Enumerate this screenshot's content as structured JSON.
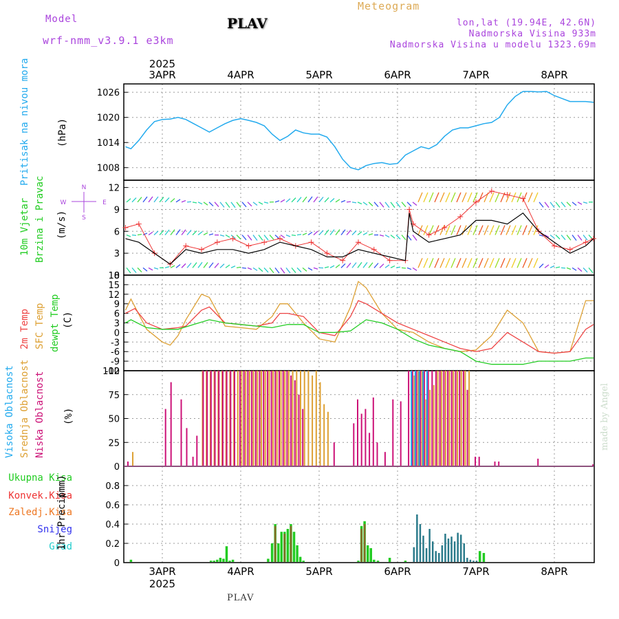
{
  "header": {
    "model_label": "Model",
    "model_name": "wrf-nmm_v3.9.1  e3km",
    "station": "PLAV",
    "meteogram_label": "Meteogram",
    "lonlat": "lon,lat (19.94E, 42.6N)",
    "altitude": "Nadmorska Visina 933m",
    "model_altitude": "Nadmorska Visina u modelu 1323.69m",
    "watermark": "made by Angel",
    "footer": "PLAV",
    "year": "2025"
  },
  "time_axis": {
    "days": [
      "3APR",
      "4APR",
      "5APR",
      "6APR",
      "7APR",
      "8APR"
    ],
    "start_day_offset": -0.47,
    "end_day_offset": 5.5
  },
  "colors": {
    "pressure": "#22aaee",
    "wind_speed": "#000000",
    "wind_gust": "#ee3333",
    "temp_2m": "#ee4444",
    "temp_sfc": "#dda033",
    "dewpoint": "#22cc22",
    "cloud_high": "#22aaee",
    "cloud_mid": "#dda033",
    "cloud_low": "#cc1177",
    "precip_total": "#22cc22",
    "precip_conv": "#ee3333",
    "precip_frozen": "#ee7722",
    "snow": "#3333ee",
    "graupel": "#22cccc"
  },
  "chart_data": [
    {
      "type": "line",
      "name": "pressure",
      "title": "Pritisak na nivou mora",
      "ylabel": "(hPa)",
      "ylim": [
        1005,
        1028
      ],
      "yticks": [
        "1008",
        "1014",
        "1020",
        "1026"
      ],
      "series": [
        {
          "name": "Pritisak na nivou mora",
          "x": [
            -0.47,
            -0.4,
            -0.3,
            -0.2,
            -0.1,
            0.0,
            0.1,
            0.2,
            0.3,
            0.4,
            0.5,
            0.6,
            0.7,
            0.8,
            0.9,
            1.0,
            1.1,
            1.2,
            1.3,
            1.4,
            1.5,
            1.6,
            1.7,
            1.8,
            1.9,
            2.0,
            2.1,
            2.2,
            2.3,
            2.4,
            2.5,
            2.6,
            2.7,
            2.8,
            2.9,
            3.0,
            3.1,
            3.2,
            3.3,
            3.4,
            3.5,
            3.6,
            3.7,
            3.8,
            3.9,
            4.0,
            4.1,
            4.2,
            4.3,
            4.4,
            4.5,
            4.6,
            4.7,
            4.8,
            4.9,
            5.0,
            5.1,
            5.2,
            5.3,
            5.4,
            5.5
          ],
          "values": [
            1013,
            1012.5,
            1014.5,
            1017,
            1019,
            1019.5,
            1019.6,
            1020,
            1019.5,
            1018.5,
            1017.5,
            1016.5,
            1017.5,
            1018.5,
            1019.3,
            1019.7,
            1019.3,
            1018.8,
            1018,
            1016,
            1014.5,
            1015.5,
            1017,
            1016.3,
            1016,
            1016,
            1015.3,
            1013,
            1010,
            1008,
            1007.5,
            1008.5,
            1009,
            1009.2,
            1008.8,
            1009,
            1011,
            1012,
            1013,
            1012.5,
            1013.5,
            1015.5,
            1017,
            1017.5,
            1017.5,
            1018,
            1018.5,
            1018.8,
            1020,
            1023,
            1025,
            1026.2,
            1026.2,
            1026.1,
            1026.2,
            1025.2,
            1024.5,
            1023.8,
            1023.8,
            1023.8,
            1023.6
          ]
        }
      ]
    },
    {
      "type": "line",
      "name": "wind",
      "title": "10m Vjetar Brzina i Pravac",
      "ylabel": "(m/s)",
      "compass": [
        "N",
        "W",
        "E",
        "S"
      ],
      "ylim": [
        0,
        13
      ],
      "yticks": [
        "0",
        "3",
        "6",
        "9",
        "12"
      ],
      "series": [
        {
          "name": "speed",
          "x": [
            -0.47,
            -0.3,
            -0.1,
            0.1,
            0.3,
            0.5,
            0.7,
            0.9,
            1.1,
            1.3,
            1.5,
            1.7,
            1.9,
            2.1,
            2.3,
            2.5,
            2.7,
            2.9,
            3.1,
            3.15,
            3.2,
            3.4,
            3.6,
            3.8,
            4.0,
            4.2,
            4.4,
            4.6,
            4.8,
            5.0,
            5.2,
            5.4,
            5.5
          ],
          "values": [
            5,
            4.5,
            3,
            1.5,
            3.5,
            3,
            3.5,
            3.5,
            3,
            3.5,
            4.5,
            4,
            3.5,
            2.5,
            2.5,
            3.5,
            3,
            2.5,
            2,
            8.5,
            6,
            4.5,
            5,
            5.5,
            7.5,
            7.5,
            7,
            8.5,
            6,
            4.5,
            3,
            4,
            5
          ]
        },
        {
          "name": "gust",
          "x": [
            -0.47,
            -0.3,
            -0.1,
            0.1,
            0.3,
            0.5,
            0.7,
            0.9,
            1.1,
            1.3,
            1.5,
            1.7,
            1.9,
            2.1,
            2.3,
            2.5,
            2.7,
            2.9,
            3.1,
            3.15,
            3.2,
            3.4,
            3.6,
            3.8,
            4.0,
            4.2,
            4.4,
            4.6,
            4.8,
            5.0,
            5.2,
            5.4,
            5.5
          ],
          "values": [
            6.5,
            7,
            3,
            1.5,
            4,
            3.5,
            4.5,
            5,
            4,
            4.5,
            5,
            4,
            4.5,
            3,
            2,
            4.5,
            3.5,
            2,
            2,
            9,
            7,
            5.5,
            6.5,
            8,
            10,
            11.5,
            11,
            10.5,
            6,
            4,
            3.5,
            4.5,
            5
          ]
        }
      ]
    },
    {
      "type": "line",
      "name": "temperature",
      "title": "2m Temp, SFC Temp, dewpt Temp",
      "ylabel": "(C)",
      "ylim": [
        -12,
        18
      ],
      "yticks": [
        "-12",
        "-9",
        "-6",
        "-3",
        "0",
        "3",
        "6",
        "9",
        "12",
        "15",
        "18"
      ],
      "series": [
        {
          "name": "2m Temp",
          "x": [
            -0.47,
            -0.35,
            -0.2,
            0.0,
            0.2,
            0.3,
            0.5,
            0.6,
            0.8,
            1.0,
            1.2,
            1.4,
            1.5,
            1.6,
            1.8,
            2.0,
            2.2,
            2.4,
            2.5,
            2.6,
            2.8,
            3.0,
            3.2,
            3.4,
            3.6,
            3.8,
            4.0,
            4.2,
            4.4,
            4.6,
            4.8,
            5.0,
            5.2,
            5.4,
            5.5
          ],
          "values": [
            6,
            7.5,
            3,
            1,
            1.5,
            2,
            7,
            8,
            3,
            2.5,
            2,
            3,
            6,
            6,
            5,
            0,
            -1,
            5,
            10,
            9,
            6,
            3,
            1,
            -1,
            -3,
            -5,
            -6,
            -5,
            0,
            -3,
            -6,
            -6.5,
            -6,
            1,
            2.5
          ]
        },
        {
          "name": "SFC Temp",
          "x": [
            -0.47,
            -0.4,
            -0.2,
            0.0,
            0.1,
            0.2,
            0.3,
            0.5,
            0.6,
            0.8,
            1.0,
            1.2,
            1.4,
            1.5,
            1.6,
            1.8,
            2.0,
            2.2,
            2.4,
            2.5,
            2.6,
            2.8,
            3.0,
            3.2,
            3.4,
            3.6,
            3.8,
            4.0,
            4.2,
            4.4,
            4.6,
            4.8,
            5.0,
            5.2,
            5.4,
            5.5
          ],
          "values": [
            7,
            10.5,
            1,
            -3,
            -4,
            -1,
            4,
            12,
            11,
            2,
            1.5,
            1,
            5,
            9,
            9,
            3,
            -2,
            -3,
            8,
            16,
            14,
            6,
            1,
            0,
            -3,
            -5,
            -6,
            -5.5,
            -1,
            7,
            3,
            -6,
            -6.5,
            -6,
            10,
            10
          ]
        },
        {
          "name": "dewpt Temp",
          "x": [
            -0.47,
            -0.4,
            -0.2,
            0.0,
            0.2,
            0.4,
            0.6,
            0.8,
            1.0,
            1.2,
            1.4,
            1.6,
            1.8,
            2.0,
            2.2,
            2.4,
            2.6,
            2.8,
            3.0,
            3.2,
            3.4,
            3.6,
            3.8,
            4.0,
            4.2,
            4.4,
            4.6,
            4.8,
            5.0,
            5.2,
            5.4,
            5.5
          ],
          "values": [
            3,
            4,
            1.5,
            1,
            1,
            2.5,
            4,
            3,
            2.5,
            2,
            1.5,
            2.5,
            2.5,
            0,
            0,
            0.5,
            4,
            3,
            1,
            -2,
            -4,
            -5,
            -6,
            -9,
            -10,
            -10,
            -10,
            -9,
            -9,
            -9,
            -8,
            -8
          ]
        }
      ]
    },
    {
      "type": "bar",
      "name": "cloud_cover",
      "title": "Visoka Oblacnost, Srednja Oblacnost, Niska Oblacnost",
      "ylabel": "(%)",
      "ylim": [
        0,
        100
      ],
      "yticks": [
        "0",
        "25",
        "50",
        "75",
        "100"
      ],
      "series": [
        {
          "name": "Visoka Oblacnost",
          "x": [
            3.15,
            3.2,
            3.25,
            3.3,
            3.35
          ],
          "values": [
            100,
            100,
            100,
            100,
            100
          ]
        },
        {
          "name": "Srednja Oblacnost",
          "x": [
            -0.39,
            0.5,
            0.55,
            0.6,
            0.65,
            0.7,
            0.75,
            0.8,
            0.85,
            0.9,
            0.95,
            1.0,
            1.05,
            1.1,
            1.15,
            1.2,
            1.25,
            1.3,
            1.35,
            1.4,
            1.45,
            1.5,
            1.55,
            1.6,
            1.65,
            1.7,
            1.75,
            1.8,
            1.85,
            1.9,
            1.95,
            2.0,
            2.05,
            2.1,
            3.2,
            3.25,
            3.3,
            3.35,
            3.4,
            3.45,
            3.5,
            3.55,
            3.6,
            3.65,
            3.7,
            3.75,
            3.8,
            3.85,
            3.9
          ],
          "values": [
            15,
            100,
            100,
            100,
            100,
            100,
            100,
            100,
            100,
            100,
            100,
            100,
            100,
            100,
            100,
            100,
            100,
            100,
            100,
            100,
            100,
            100,
            100,
            100,
            100,
            100,
            100,
            100,
            100,
            95,
            100,
            88,
            65,
            57,
            95,
            100,
            100,
            70,
            80,
            85,
            100,
            100,
            100,
            100,
            100,
            100,
            100,
            100,
            100
          ]
        },
        {
          "name": "Niska Oblacnost",
          "x": [
            -0.43,
            0.05,
            0.12,
            0.25,
            0.32,
            0.4,
            0.45,
            0.53,
            0.58,
            0.63,
            0.68,
            0.73,
            0.78,
            0.83,
            0.88,
            0.93,
            1.0,
            1.05,
            1.1,
            1.15,
            1.2,
            1.25,
            1.3,
            1.35,
            1.4,
            1.45,
            1.5,
            1.55,
            1.6,
            1.65,
            1.7,
            1.75,
            1.8,
            2.2,
            2.45,
            2.5,
            2.55,
            2.6,
            2.65,
            2.7,
            2.75,
            2.85,
            2.95,
            3.05,
            3.15,
            3.2,
            3.25,
            3.3,
            3.35,
            3.4,
            3.45,
            3.5,
            3.55,
            3.6,
            3.65,
            3.7,
            3.75,
            3.8,
            3.85,
            3.9,
            4.0,
            4.05,
            4.25,
            4.3,
            4.8,
            5.5
          ],
          "values": [
            5,
            60,
            88,
            70,
            40,
            10,
            32,
            100,
            100,
            100,
            100,
            100,
            100,
            100,
            100,
            100,
            100,
            100,
            100,
            100,
            100,
            100,
            100,
            100,
            100,
            100,
            100,
            100,
            100,
            95,
            90,
            75,
            60,
            25,
            45,
            70,
            55,
            60,
            35,
            72,
            25,
            15,
            70,
            68,
            100,
            100,
            100,
            100,
            100,
            100,
            100,
            100,
            100,
            100,
            100,
            100,
            100,
            100,
            100,
            80,
            10,
            10,
            5,
            5,
            8,
            2
          ]
        }
      ]
    },
    {
      "type": "bar",
      "name": "precipitation",
      "title": "1hr Precip",
      "ylabel": "(mm)",
      "ylim": [
        0,
        1.0
      ],
      "yticks": [
        "0",
        "0.2",
        "0.4",
        "0.6",
        "0.8"
      ],
      "legend": [
        "Ukupna Kisa",
        "Konvek.Kisa",
        "Zaledj.Kisa",
        "Snijeg",
        "Grad"
      ],
      "series": [
        {
          "name": "Ukupna Kisa",
          "x": [
            -0.4,
            0.62,
            0.66,
            0.7,
            0.74,
            0.78,
            0.82,
            0.86,
            0.9,
            1.35,
            1.4,
            1.44,
            1.48,
            1.52,
            1.56,
            1.6,
            1.64,
            1.68,
            1.72,
            1.76,
            1.8,
            2.5,
            2.54,
            2.58,
            2.62,
            2.66,
            2.7,
            2.75,
            2.9,
            3.1,
            4.05,
            4.1
          ],
          "values": [
            0.03,
            0.02,
            0.02,
            0.03,
            0.05,
            0.04,
            0.17,
            0.02,
            0.03,
            0.04,
            0.2,
            0.4,
            0.2,
            0.32,
            0.32,
            0.35,
            0.4,
            0.32,
            0.18,
            0.06,
            0.02,
            0.02,
            0.38,
            0.43,
            0.18,
            0.15,
            0.03,
            0.02,
            0.05,
            0.02,
            0.12,
            0.1
          ]
        },
        {
          "name": "Konvek.Kisa",
          "x": [
            1.44,
            1.56,
            1.64,
            2.54,
            2.58
          ],
          "values": [
            0.38,
            0.3,
            0.38,
            0.35,
            0.4
          ]
        },
        {
          "name": "Snijeg",
          "x": [
            3.2,
            3.24,
            3.28,
            3.32,
            3.36,
            3.4,
            3.44,
            3.48,
            3.52,
            3.56,
            3.6,
            3.64,
            3.68,
            3.72,
            3.76,
            3.8,
            3.84,
            3.88,
            3.92,
            3.96,
            4.0
          ],
          "values": [
            0.16,
            0.5,
            0.4,
            0.28,
            0.15,
            0.35,
            0.22,
            0.12,
            0.1,
            0.18,
            0.3,
            0.25,
            0.27,
            0.22,
            0.31,
            0.29,
            0.2,
            0.05,
            0.03,
            0.02,
            0.02
          ]
        }
      ]
    }
  ]
}
